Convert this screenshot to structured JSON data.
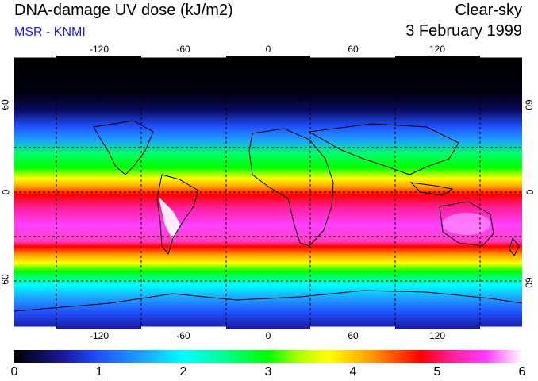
{
  "title": "DNA-damage UV dose (kJ/m2)",
  "subtitle": "MSR - KNMI",
  "sky_condition": "Clear-sky",
  "date": "3 February 1999",
  "map": {
    "longitude_ticks": [
      "-120",
      "-60",
      "0",
      "60",
      "120"
    ],
    "latitude_ticks": [
      "60",
      "0",
      "-60"
    ],
    "gridlines": "dashed",
    "colors": {
      "frame": "#000000",
      "grid": "#000000",
      "coast": "#000000"
    }
  },
  "colorbar": {
    "min": 0,
    "max": 6,
    "labels": [
      "0",
      "1",
      "2",
      "3",
      "4",
      "5",
      "6"
    ]
  }
}
